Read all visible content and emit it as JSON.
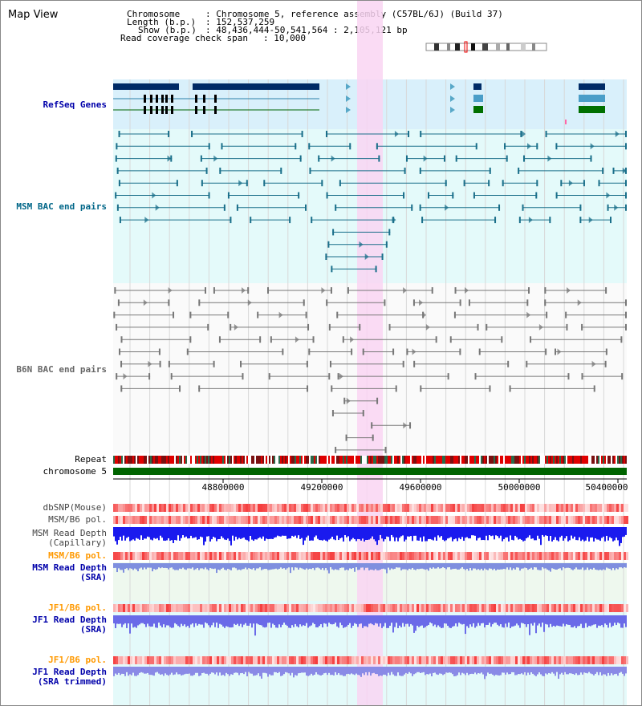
{
  "title": "Map View",
  "header": {
    "chromosome_label": "Chromosome",
    "chromosome_value": ": Chromosome 5, reference assembly (C57BL/6J) (Build 37)",
    "length_label": "Length (b.p.)",
    "length_value": ": 152,537,259",
    "show_label": "Show (b.p.)",
    "show_value": ": 48,436,444-50,541,564 : 2,105,121 bp",
    "coverage_label": "Read coverage check span",
    "coverage_value": ": 10,000"
  },
  "tracks": {
    "refseq": "RefSeq Genes",
    "msm_bac": "MSM BAC end pairs",
    "b6n_bac": "B6N BAC end pairs",
    "repeat": "Repeat",
    "chromosome": "chromosome 5",
    "dbsnp": "dbSNP(Mouse)",
    "msm_pol1": "MSM/B6 pol.",
    "msm_depth_cap_1": "MSM Read Depth",
    "msm_depth_cap_2": "(Capillary)",
    "msm_pol2": "MSM/B6 pol.",
    "msm_depth_sra_1": "MSM Read Depth",
    "msm_depth_sra_2": "(SRA)",
    "jf1_pol1": "JF1/B6 pol.",
    "jf1_depth_1": "JF1 Read Depth",
    "jf1_depth_2": "(SRA)",
    "jf1_pol2": "JF1/B6 pol.",
    "jf1_trim_1": "JF1 Read Depth",
    "jf1_trim_2": "(SRA trimmed)"
  },
  "axis_ticks": [
    "48800000",
    "49200000",
    "49600000",
    "50000000",
    "50400000"
  ],
  "colors": {
    "refseq_label": "#0000aa",
    "msm_bac_label": "#006688",
    "b6n_bac_label": "#666666",
    "orange_label": "#ff9900",
    "blue_label": "#0000aa",
    "highlight": "#f9d5f2",
    "chromosome_bar": "#006400"
  }
}
